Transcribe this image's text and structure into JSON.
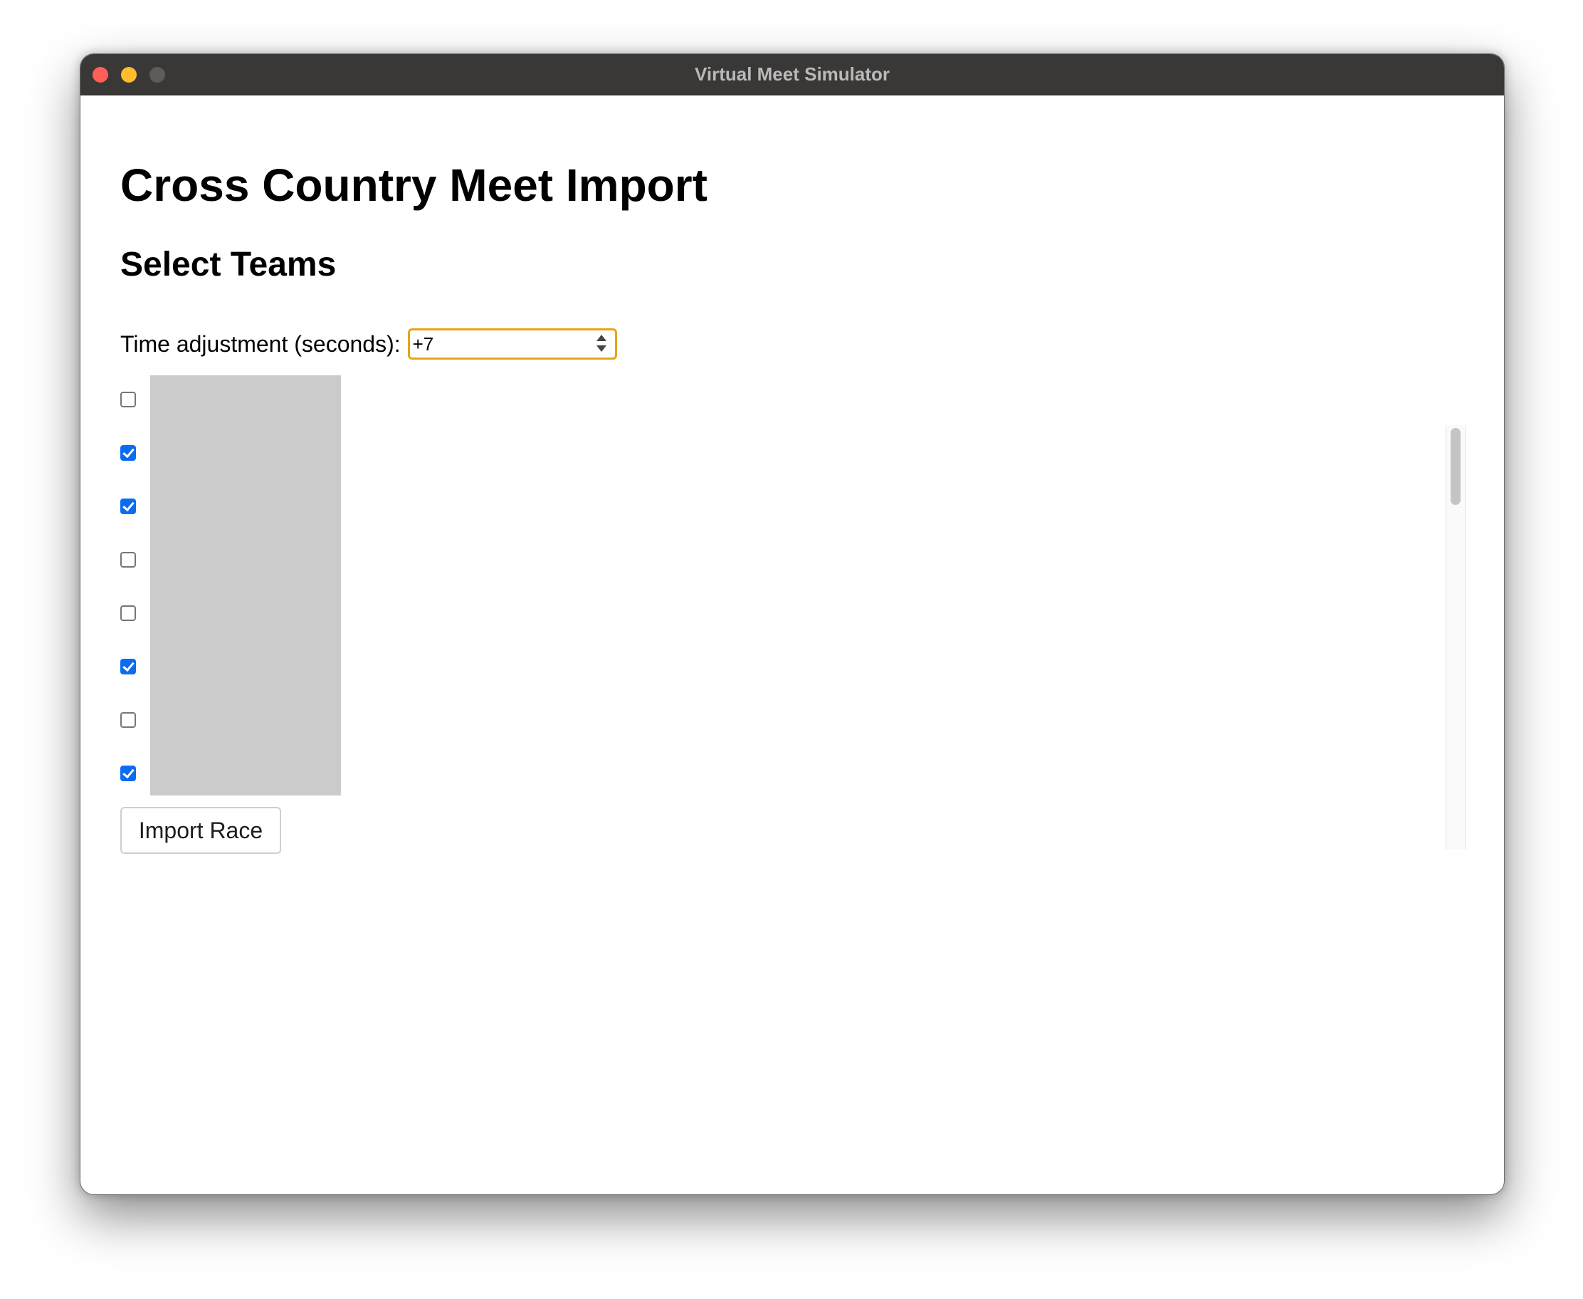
{
  "window": {
    "title": "Virtual Meet Simulator"
  },
  "page": {
    "title": "Cross Country Meet Import",
    "section_title": "Select Teams"
  },
  "time_adjustment": {
    "label": "Time adjustment (seconds):",
    "value": "+7"
  },
  "teams": [
    {
      "checked": false
    },
    {
      "checked": true
    },
    {
      "checked": true
    },
    {
      "checked": false
    },
    {
      "checked": false
    },
    {
      "checked": true
    },
    {
      "checked": false
    },
    {
      "checked": true
    }
  ],
  "import_button": {
    "label": "Import Race"
  },
  "colors": {
    "checkbox_checked": "#0b6cf2",
    "input_focus_border": "#e8a317",
    "redacted_names": "#cbcbcb"
  }
}
